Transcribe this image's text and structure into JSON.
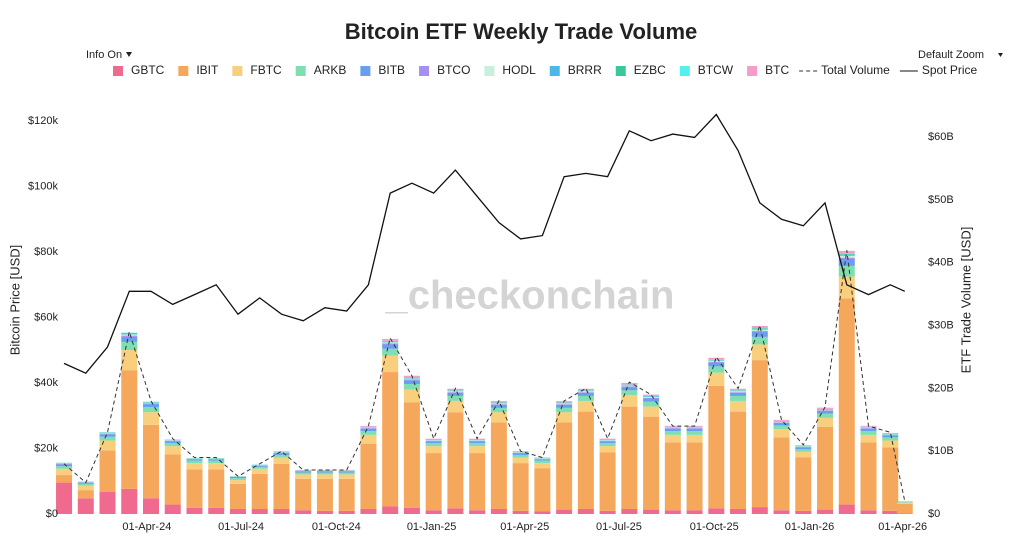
{
  "chart_data": {
    "type": "bar",
    "title": "Bitcoin ETF Weekly Trade Volume",
    "controls": {
      "info": "Info On",
      "zoom": "Default Zoom"
    },
    "watermark": "_checkonchain",
    "ylabel": "Bitcoin Price [USD]",
    "y2label": "ETF Trade Volume [USD]",
    "x": [
      "2024-01-12",
      "2024-02-02",
      "2024-02-23",
      "2024-03-15",
      "2024-04-05",
      "2024-04-26",
      "2024-05-17",
      "2024-06-07",
      "2024-06-28",
      "2024-07-19",
      "2024-08-09",
      "2024-08-30",
      "2024-09-20",
      "2024-10-11",
      "2024-11-01",
      "2024-11-22",
      "2024-12-13",
      "2025-01-03",
      "2025-01-24",
      "2025-02-14",
      "2025-03-07",
      "2025-03-28",
      "2025-04-18",
      "2025-05-09",
      "2025-05-30",
      "2025-06-20",
      "2025-07-11",
      "2025-08-01",
      "2025-08-22",
      "2025-09-12",
      "2025-10-03",
      "2025-10-24",
      "2025-11-14",
      "2025-12-05",
      "2025-12-26",
      "2026-01-16",
      "2026-02-06",
      "2026-02-27",
      "2026-03-20",
      "2026-04-03"
    ],
    "xlim": [
      "2024-01-11",
      "2026-04-10"
    ],
    "xticks": [
      {
        "value": "2024-04-01",
        "label": "01-Apr-24"
      },
      {
        "value": "2024-07-01",
        "label": "01-Jul-24"
      },
      {
        "value": "2024-10-01",
        "label": "01-Oct-24"
      },
      {
        "value": "2025-01-01",
        "label": "01-Jan-25"
      },
      {
        "value": "2025-04-01",
        "label": "01-Apr-25"
      },
      {
        "value": "2025-07-01",
        "label": "01-Jul-25"
      },
      {
        "value": "2025-10-01",
        "label": "01-Oct-25"
      },
      {
        "value": "2026-01-01",
        "label": "01-Jan-26"
      },
      {
        "value": "2026-04-01",
        "label": "01-Apr-26"
      }
    ],
    "ylim": [
      0,
      131000
    ],
    "yticks": [
      {
        "value": 0,
        "label": "$0"
      },
      {
        "value": 20000,
        "label": "$20k"
      },
      {
        "value": 40000,
        "label": "$40k"
      },
      {
        "value": 60000,
        "label": "$60k"
      },
      {
        "value": 80000,
        "label": "$80k"
      },
      {
        "value": 100000,
        "label": "$100k"
      },
      {
        "value": 120000,
        "label": "$120k"
      }
    ],
    "y2lim": [
      0,
      68.3
    ],
    "y2ticks": [
      {
        "value": 0,
        "label": "$0"
      },
      {
        "value": 10,
        "label": "$10B"
      },
      {
        "value": 20,
        "label": "$20B"
      },
      {
        "value": 30,
        "label": "$30B"
      },
      {
        "value": 40,
        "label": "$40B"
      },
      {
        "value": 50,
        "label": "$50B"
      },
      {
        "value": 60,
        "label": "$60B"
      }
    ],
    "series": [
      {
        "name": "GBTC",
        "type": "bar",
        "axis": "y2",
        "color": "#f0698f",
        "values": [
          5,
          2.5,
          3.5,
          4,
          2.5,
          1.5,
          1,
          1,
          0.8,
          0.8,
          0.8,
          0.6,
          0.5,
          0.5,
          0.8,
          1.2,
          1,
          0.6,
          0.9,
          0.6,
          0.8,
          0.5,
          0.4,
          0.7,
          0.8,
          0.5,
          0.8,
          0.7,
          0.6,
          0.6,
          0.9,
          0.8,
          1.1,
          0.6,
          0.5,
          0.7,
          1.5,
          0.6,
          0.5,
          0.1
        ]
      },
      {
        "name": "IBIT",
        "type": "bar",
        "axis": "y2",
        "color": "#f5a85c",
        "values": [
          1.2,
          1.3,
          6.6,
          18.9,
          11.7,
          8,
          6.1,
          6.1,
          4,
          5.6,
          7.2,
          5,
          5.1,
          5.1,
          10.4,
          21.4,
          16.8,
          9.1,
          15.3,
          9.1,
          13.8,
          7.6,
          6.9,
          13.9,
          15.5,
          9.3,
          16.3,
          14.8,
          10.8,
          10.8,
          19.5,
          15.5,
          23.4,
          11.6,
          8.5,
          13.2,
          32.8,
          10.8,
          10.1,
          1.5
        ]
      },
      {
        "name": "FBTC",
        "type": "bar",
        "axis": "y2",
        "color": "#f9cf7d",
        "values": [
          1,
          0.7,
          1.6,
          3.2,
          2,
          1.3,
          1,
          1,
          0.6,
          0.8,
          1,
          0.7,
          0.7,
          0.7,
          1.4,
          2.6,
          2,
          1.1,
          1.8,
          1.1,
          1.6,
          0.9,
          0.8,
          1.6,
          1.7,
          1,
          1.8,
          1.6,
          1.2,
          1.2,
          2.1,
          1.7,
          2.5,
          1.3,
          0.9,
          1.4,
          3.5,
          1.2,
          1.1,
          0.2
        ]
      },
      {
        "name": "ARKB",
        "type": "bar",
        "axis": "y2",
        "color": "#7ee0b0",
        "values": [
          0.4,
          0.3,
          0.6,
          1.3,
          0.8,
          0.5,
          0.4,
          0.4,
          0.3,
          0.3,
          0.4,
          0.3,
          0.3,
          0.3,
          0.6,
          1.1,
          0.9,
          0.5,
          0.8,
          0.5,
          0.7,
          0.4,
          0.4,
          0.7,
          0.8,
          0.5,
          0.8,
          0.8,
          0.6,
          0.6,
          1,
          0.8,
          1.2,
          0.6,
          0.4,
          0.7,
          1.7,
          0.6,
          0.5,
          0.1
        ]
      },
      {
        "name": "BITB",
        "type": "bar",
        "axis": "y2",
        "color": "#6a9ef0",
        "values": [
          0.3,
          0.2,
          0.4,
          0.8,
          0.5,
          0.3,
          0.2,
          0.2,
          0.2,
          0.2,
          0.3,
          0.2,
          0.2,
          0.2,
          0.4,
          0.7,
          0.6,
          0.3,
          0.5,
          0.3,
          0.5,
          0.3,
          0.2,
          0.5,
          0.5,
          0.3,
          0.5,
          0.5,
          0.4,
          0.4,
          0.6,
          0.5,
          0.8,
          0.4,
          0.3,
          0.4,
          1.1,
          0.4,
          0.3,
          0.05
        ]
      },
      {
        "name": "BTCO",
        "type": "bar",
        "axis": "y2",
        "color": "#a58ff0",
        "values": [
          0.1,
          0.05,
          0.1,
          0.2,
          0.1,
          0.06,
          0.05,
          0.05,
          0.03,
          0.04,
          0.05,
          0.04,
          0.04,
          0.04,
          0.07,
          0.14,
          0.11,
          0.06,
          0.1,
          0.06,
          0.09,
          0.05,
          0.05,
          0.09,
          0.1,
          0.06,
          0.1,
          0.1,
          0.07,
          0.07,
          0.12,
          0.1,
          0.15,
          0.08,
          0.06,
          0.08,
          0.2,
          0.07,
          0.06,
          0.01
        ]
      },
      {
        "name": "HODL",
        "type": "bar",
        "axis": "y2",
        "color": "#c6f0dd",
        "values": [
          0.05,
          0.04,
          0.08,
          0.2,
          0.12,
          0.08,
          0.06,
          0.06,
          0.04,
          0.05,
          0.06,
          0.04,
          0.04,
          0.05,
          0.1,
          0.2,
          0.16,
          0.09,
          0.15,
          0.09,
          0.13,
          0.07,
          0.07,
          0.13,
          0.15,
          0.09,
          0.15,
          0.14,
          0.1,
          0.1,
          0.18,
          0.15,
          0.22,
          0.11,
          0.08,
          0.12,
          0.3,
          0.1,
          0.09,
          0.02
        ]
      },
      {
        "name": "BRRR",
        "type": "bar",
        "axis": "y2",
        "color": "#4bb8e8",
        "values": [
          0.05,
          0.03,
          0.05,
          0.1,
          0.06,
          0.04,
          0.03,
          0.03,
          0.02,
          0.03,
          0.03,
          0.02,
          0.02,
          0.02,
          0.04,
          0.08,
          0.07,
          0.04,
          0.06,
          0.04,
          0.05,
          0.03,
          0.03,
          0.05,
          0.06,
          0.04,
          0.06,
          0.06,
          0.04,
          0.04,
          0.07,
          0.06,
          0.09,
          0.05,
          0.03,
          0.05,
          0.12,
          0.04,
          0.04,
          0.01
        ]
      },
      {
        "name": "EZBC",
        "type": "bar",
        "axis": "y2",
        "color": "#36c99a",
        "values": [
          0.04,
          0.03,
          0.06,
          0.12,
          0.07,
          0.05,
          0.04,
          0.04,
          0.03,
          0.03,
          0.04,
          0.03,
          0.03,
          0.03,
          0.06,
          0.1,
          0.08,
          0.05,
          0.07,
          0.05,
          0.07,
          0.04,
          0.03,
          0.07,
          0.07,
          0.05,
          0.08,
          0.07,
          0.05,
          0.05,
          0.09,
          0.07,
          0.1,
          0.06,
          0.04,
          0.06,
          0.15,
          0.05,
          0.05,
          0.01
        ]
      },
      {
        "name": "BTCW",
        "type": "bar",
        "axis": "y2",
        "color": "#52f0f0",
        "values": [
          0.02,
          0.01,
          0.02,
          0.05,
          0.03,
          0.02,
          0.02,
          0.02,
          0.01,
          0.01,
          0.02,
          0.01,
          0.01,
          0.01,
          0.02,
          0.05,
          0.04,
          0.02,
          0.04,
          0.02,
          0.03,
          0.02,
          0.02,
          0.03,
          0.04,
          0.02,
          0.04,
          0.03,
          0.03,
          0.03,
          0.04,
          0.04,
          0.05,
          0.03,
          0.02,
          0.03,
          0.07,
          0.03,
          0.02,
          0.01
        ]
      },
      {
        "name": "BTC",
        "type": "bar",
        "axis": "y2",
        "color": "#f59cc8",
        "values": [
          0,
          0,
          0,
          0,
          0,
          0,
          0,
          0,
          0,
          0,
          0.1,
          0.07,
          0.07,
          0.07,
          0.14,
          0.3,
          0.25,
          0.13,
          0.22,
          0.13,
          0.2,
          0.11,
          0.1,
          0.2,
          0.22,
          0.13,
          0.23,
          0.21,
          0.15,
          0.15,
          0.27,
          0.22,
          0.33,
          0.16,
          0.12,
          0.19,
          0.45,
          0.15,
          0.14,
          0.02
        ]
      },
      {
        "name": "Total Volume",
        "type": "line",
        "dash": "dashed",
        "axis": "y2",
        "color": "#333333",
        "values": [
          8,
          5,
          13,
          29,
          18,
          12,
          9,
          9,
          6,
          8,
          10,
          7,
          7,
          7,
          14,
          28,
          22,
          12,
          20,
          12,
          18,
          10,
          9,
          18,
          20,
          12,
          21,
          19,
          14,
          14,
          25,
          20,
          30,
          15,
          11,
          17,
          42,
          14,
          13,
          2
        ]
      },
      {
        "name": "Spot Price",
        "type": "line",
        "dash": "solid",
        "axis": "y",
        "color": "#111111",
        "values": [
          46000,
          43000,
          51000,
          68000,
          68000,
          64000,
          67000,
          70000,
          61000,
          66000,
          61000,
          59000,
          63000,
          62000,
          70000,
          98000,
          101000,
          98000,
          105000,
          97000,
          89000,
          84000,
          85000,
          103000,
          104000,
          103000,
          117000,
          114000,
          116000,
          115000,
          122000,
          111000,
          95000,
          90000,
          88000,
          95000,
          70000,
          67000,
          70000,
          68000
        ]
      }
    ]
  }
}
